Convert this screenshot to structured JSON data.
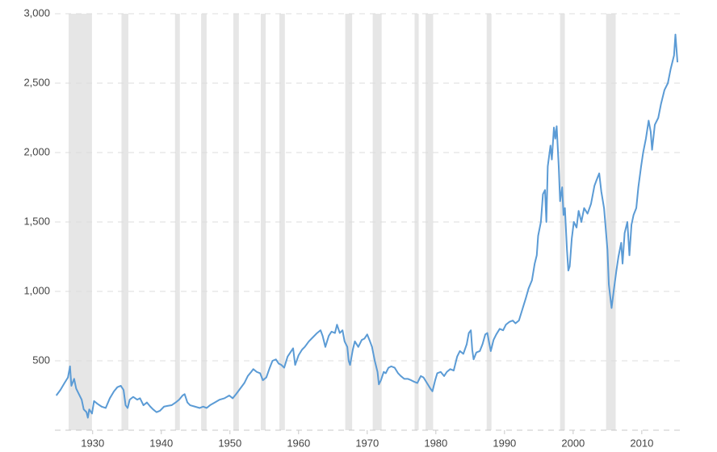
{
  "chart_data": {
    "type": "line",
    "x": [
      1924.7,
      1925.3,
      1925.9,
      1926.4,
      1926.7,
      1926.9,
      1927.3,
      1927.6,
      1928.0,
      1928.4,
      1928.7,
      1929.1,
      1929.3,
      1929.5,
      1929.9,
      1930.2,
      1930.7,
      1931.3,
      1931.9,
      1932.5,
      1933.1,
      1933.6,
      1934.1,
      1934.5,
      1934.8,
      1935.1,
      1935.4,
      1935.9,
      1936.5,
      1936.9,
      1937.4,
      1937.9,
      1938.4,
      1938.8,
      1939.3,
      1939.8,
      1940.4,
      1940.9,
      1941.5,
      1942.1,
      1942.6,
      1943.1,
      1943.4,
      1943.8,
      1944.2,
      1944.9,
      1945.6,
      1946.1,
      1946.6,
      1947.1,
      1947.8,
      1948.5,
      1949.2,
      1949.9,
      1950.4,
      1950.9,
      1951.5,
      1952.1,
      1952.6,
      1953.1,
      1953.4,
      1953.9,
      1954.4,
      1954.8,
      1955.3,
      1955.8,
      1956.2,
      1956.7,
      1957.1,
      1957.5,
      1957.9,
      1958.4,
      1958.8,
      1959.2,
      1959.5,
      1960.0,
      1960.5,
      1960.9,
      1961.5,
      1962.1,
      1962.7,
      1963.2,
      1963.5,
      1963.9,
      1964.4,
      1964.8,
      1965.3,
      1965.6,
      1966.0,
      1966.4,
      1966.7,
      1967.1,
      1967.3,
      1967.5,
      1967.9,
      1968.2,
      1968.7,
      1969.2,
      1969.6,
      1970.0,
      1970.4,
      1970.7,
      1971.1,
      1971.5,
      1971.7,
      1972.0,
      1972.4,
      1972.7,
      1973.1,
      1973.5,
      1974.0,
      1974.5,
      1974.9,
      1975.4,
      1975.9,
      1976.4,
      1976.8,
      1977.3,
      1977.8,
      1978.2,
      1978.7,
      1979.2,
      1979.5,
      1979.9,
      1980.2,
      1980.7,
      1981.2,
      1981.6,
      1982.1,
      1982.6,
      1983.1,
      1983.5,
      1984.0,
      1984.5,
      1984.8,
      1985.1,
      1985.3,
      1985.5,
      1985.9,
      1986.4,
      1986.8,
      1987.2,
      1987.5,
      1987.8,
      1988.0,
      1988.4,
      1988.8,
      1989.3,
      1989.8,
      1990.2,
      1990.7,
      1991.2,
      1991.6,
      1992.1,
      1992.6,
      1993.1,
      1993.5,
      1994.0,
      1994.4,
      1994.7,
      1994.9,
      1995.3,
      1995.6,
      1995.9,
      1996.1,
      1996.3,
      1996.7,
      1996.9,
      1997.2,
      1997.4,
      1997.6,
      1997.9,
      1998.1,
      1998.4,
      1998.6,
      1998.8,
      1999.1,
      1999.3,
      1999.5,
      1999.8,
      2000.1,
      2000.5,
      2000.8,
      2001.2,
      2001.6,
      2002.1,
      2002.6,
      2003.1,
      2003.4,
      2003.8,
      2004.1,
      2004.5,
      2004.7,
      2005.0,
      2005.2,
      2005.6,
      2005.9,
      2006.3,
      2006.6,
      2007.0,
      2007.2,
      2007.5,
      2007.9,
      2008.2,
      2008.5,
      2008.8,
      2009.2,
      2009.5,
      2009.9,
      2010.2,
      2010.6,
      2011.0,
      2011.3,
      2011.5,
      2011.9,
      2012.4,
      2012.8,
      2013.3,
      2013.8,
      2014.2,
      2014.7,
      2014.9,
      2015.2
    ],
    "series": [
      {
        "color": "#5b9bd5",
        "values": [
          250,
          290,
          340,
          380,
          460,
          320,
          370,
          300,
          260,
          220,
          150,
          130,
          90,
          150,
          120,
          210,
          190,
          170,
          160,
          230,
          280,
          310,
          320,
          290,
          180,
          160,
          220,
          240,
          220,
          230,
          180,
          200,
          170,
          150,
          130,
          140,
          170,
          175,
          180,
          200,
          220,
          250,
          260,
          200,
          180,
          170,
          160,
          170,
          160,
          180,
          200,
          220,
          230,
          250,
          230,
          260,
          300,
          340,
          390,
          420,
          440,
          420,
          410,
          360,
          380,
          450,
          500,
          510,
          480,
          470,
          450,
          530,
          560,
          590,
          470,
          540,
          580,
          600,
          640,
          670,
          700,
          720,
          680,
          600,
          680,
          710,
          700,
          760,
          700,
          720,
          640,
          600,
          500,
          470,
          580,
          640,
          600,
          650,
          660,
          690,
          640,
          600,
          500,
          420,
          330,
          360,
          420,
          410,
          450,
          460,
          450,
          410,
          390,
          370,
          370,
          360,
          350,
          340,
          390,
          380,
          340,
          300,
          280,
          360,
          410,
          420,
          390,
          420,
          440,
          430,
          530,
          570,
          550,
          620,
          700,
          720,
          580,
          510,
          560,
          570,
          620,
          690,
          700,
          620,
          570,
          650,
          690,
          730,
          720,
          760,
          780,
          790,
          770,
          790,
          870,
          950,
          1020,
          1080,
          1200,
          1260,
          1400,
          1500,
          1700,
          1730,
          1500,
          1900,
          2050,
          1950,
          2180,
          2100,
          2190,
          1900,
          1650,
          1750,
          1550,
          1600,
          1300,
          1150,
          1180,
          1380,
          1500,
          1460,
          1580,
          1500,
          1600,
          1560,
          1630,
          1760,
          1800,
          1850,
          1720,
          1600,
          1480,
          1300,
          1050,
          880,
          1000,
          1150,
          1250,
          1350,
          1200,
          1420,
          1500,
          1260,
          1480,
          1550,
          1600,
          1750,
          1900,
          2000,
          2100,
          2230,
          2150,
          2020,
          2200,
          2250,
          2350,
          2450,
          2500,
          2600,
          2700,
          2850,
          2650
        ]
      }
    ],
    "shaded_periods": [
      [
        1926.5,
        1929.9
      ],
      [
        1934.2,
        1935.2
      ],
      [
        1942.0,
        1942.7
      ],
      [
        1945.8,
        1946.6
      ],
      [
        1950.5,
        1951.3
      ],
      [
        1954.5,
        1955.2
      ],
      [
        1957.2,
        1958.0
      ],
      [
        1966.8,
        1967.8
      ],
      [
        1970.8,
        1972.1
      ],
      [
        1976.9,
        1977.5
      ],
      [
        1978.5,
        1979.6
      ],
      [
        1987.4,
        1988.1
      ],
      [
        1998.1,
        1998.8
      ],
      [
        2004.8,
        2006.2
      ]
    ],
    "shade_color": "#e6e6e6",
    "xlim": [
      1924.5,
      2015.9
    ],
    "xticks": [
      1930,
      1940,
      1950,
      1960,
      1970,
      1980,
      1990,
      2000,
      2010
    ],
    "ylim": [
      0,
      3000
    ],
    "yticks": [
      500,
      {
        "value": 1000,
        "label": "1,000"
      },
      {
        "value": 1500,
        "label": "1,500"
      },
      {
        "value": 2000,
        "label": "2,000"
      },
      {
        "value": 2500,
        "label": "2,500"
      },
      {
        "value": 3000,
        "label": "3,000"
      }
    ],
    "grid": true
  }
}
